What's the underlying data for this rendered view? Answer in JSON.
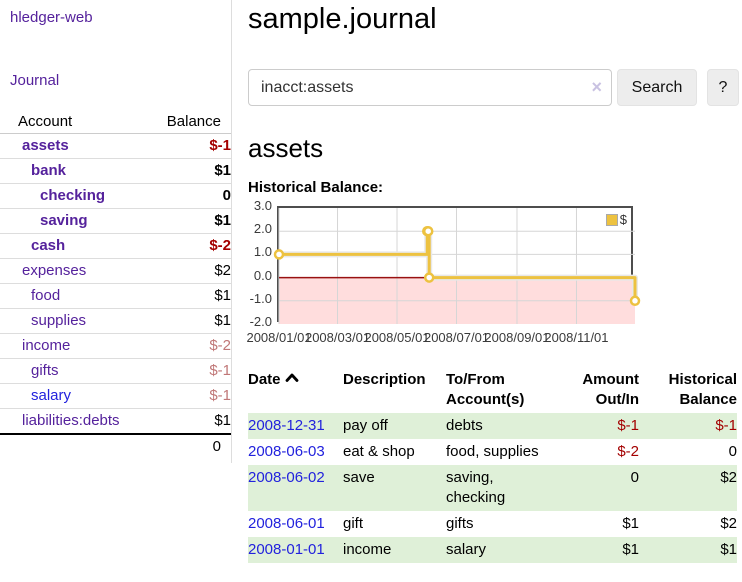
{
  "app": {
    "title": "hledger-web"
  },
  "nav": {
    "journal": "Journal"
  },
  "colors": {
    "accent_purple": "#55229c",
    "link_blue": "#2222dd",
    "negative_strong": "#a40000",
    "negative_weak": "#c07777",
    "row_green": "#dff0d8",
    "chart_yellow": "#edc240",
    "chart_negative_region": "#ffdddd",
    "zero_line": "#991111"
  },
  "sidebar": {
    "header": {
      "account": "Account",
      "balance": "Balance"
    },
    "accounts": [
      {
        "name": "assets",
        "balance": "$-1",
        "depth": 1,
        "bold": true,
        "name_style": "purple",
        "balance_style": "neg-strong"
      },
      {
        "name": "bank",
        "balance": "$1",
        "depth": 2,
        "bold": true,
        "name_style": "purple",
        "balance_style": "pos"
      },
      {
        "name": "checking",
        "balance": "0",
        "depth": 3,
        "bold": true,
        "name_style": "purple",
        "balance_style": "pos"
      },
      {
        "name": "saving",
        "balance": "$1",
        "depth": 3,
        "bold": true,
        "name_style": "purple",
        "balance_style": "pos"
      },
      {
        "name": "cash",
        "balance": "$-2",
        "depth": 2,
        "bold": true,
        "name_style": "purple",
        "balance_style": "neg-strong"
      },
      {
        "name": "expenses",
        "balance": "$2",
        "depth": 1,
        "bold": false,
        "name_style": "purple",
        "balance_style": "pos"
      },
      {
        "name": "food",
        "balance": "$1",
        "depth": 2,
        "bold": false,
        "name_style": "purple",
        "balance_style": "pos"
      },
      {
        "name": "supplies",
        "balance": "$1",
        "depth": 2,
        "bold": false,
        "name_style": "purple",
        "balance_style": "pos"
      },
      {
        "name": "income",
        "balance": "$-2",
        "depth": 1,
        "bold": false,
        "name_style": "purple",
        "balance_style": "neg-weak"
      },
      {
        "name": "gifts",
        "balance": "$-1",
        "depth": 2,
        "bold": false,
        "name_style": "purple",
        "balance_style": "neg-weak"
      },
      {
        "name": "salary",
        "balance": "$-1",
        "depth": 2,
        "bold": false,
        "name_style": "blue",
        "balance_style": "neg-weak"
      },
      {
        "name": "liabilities:debts",
        "balance": "$1",
        "depth": 1,
        "bold": false,
        "name_style": "purple",
        "balance_style": "pos"
      }
    ],
    "total": "0"
  },
  "header": {
    "title": "sample.journal"
  },
  "search": {
    "value": "inacct:assets",
    "clear_icon": "×",
    "search_button": "Search",
    "help_button": "?"
  },
  "account_page": {
    "heading": "assets",
    "chart_heading": "Historical Balance:"
  },
  "chart_data": {
    "type": "line",
    "step": true,
    "title": "Historical Balance:",
    "series": [
      {
        "name": "$",
        "color": "#edc240",
        "points": [
          [
            "2008-01-01",
            1
          ],
          [
            "2008-06-01",
            2
          ],
          [
            "2008-06-02",
            2
          ],
          [
            "2008-06-03",
            0
          ],
          [
            "2008-12-31",
            -1
          ]
        ]
      }
    ],
    "x_range": [
      "2008-01-01",
      "2008-12-31"
    ],
    "x_ticks": [
      "2008/01/01",
      "2008/03/01",
      "2008/05/01",
      "2008/07/01",
      "2008/09/01",
      "2008/11/01"
    ],
    "y_ticks": [
      "3.0",
      "2.0",
      "1.0",
      "0.0",
      "-1.0",
      "-2.0"
    ],
    "ylim": [
      -2,
      3
    ],
    "grid": true,
    "legend_position": "top-right",
    "negative_region_color": "#ffdddd",
    "zero_line_color": "#991111"
  },
  "register": {
    "columns": [
      {
        "label": "Date",
        "sorted": "asc"
      },
      {
        "label": "Description"
      },
      {
        "label": "To/From Account(s)"
      },
      {
        "label": "Amount Out/In"
      },
      {
        "label": "Historical Balance"
      }
    ],
    "rows": [
      {
        "date": "2008-12-31",
        "description": "pay off",
        "accounts": "debts",
        "amount": "$-1",
        "balance": "$-1",
        "amount_neg": true,
        "balance_neg": true
      },
      {
        "date": "2008-06-03",
        "description": "eat & shop",
        "accounts": "food, supplies",
        "amount": "$-2",
        "balance": "0",
        "amount_neg": true,
        "balance_neg": false
      },
      {
        "date": "2008-06-02",
        "description": "save",
        "accounts": "saving, checking",
        "amount": "0",
        "balance": "$2",
        "amount_neg": false,
        "balance_neg": false
      },
      {
        "date": "2008-06-01",
        "description": "gift",
        "accounts": "gifts",
        "amount": "$1",
        "balance": "$2",
        "amount_neg": false,
        "balance_neg": false
      },
      {
        "date": "2008-01-01",
        "description": "income",
        "accounts": "salary",
        "amount": "$1",
        "balance": "$1",
        "amount_neg": false,
        "balance_neg": false
      }
    ]
  }
}
